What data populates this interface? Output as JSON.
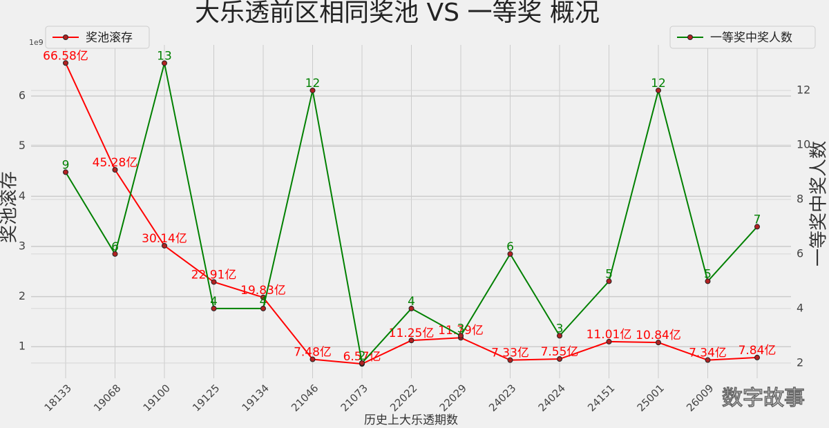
{
  "chart_data": {
    "type": "line",
    "title": "大乐透前区相同奖池 VS 一等奖 概况",
    "x_label": "历史上大乐透期数",
    "y_label": "奖池滚存",
    "y2_label": "一等奖中奖人数",
    "y_offset_label": "1e9",
    "watermark": "数字故事",
    "categories": [
      "18133",
      "19068",
      "19100",
      "19125",
      "19134",
      "21046",
      "21073",
      "22022",
      "22029",
      "24023",
      "24024",
      "24151",
      "25001",
      "26009",
      null
    ],
    "ylim": [
      0.37,
      7.02
    ],
    "yticks": [
      1,
      2,
      3,
      4,
      5,
      6
    ],
    "y2lim": [
      1.44,
      13.67
    ],
    "y2ticks": [
      2,
      4,
      6,
      8,
      10,
      12
    ],
    "grid": true,
    "series": [
      {
        "name": "奖池滚存",
        "color": "#ff0000",
        "marker_color": "#b22222",
        "legend": "upper left",
        "values": [
          6.658,
          4.528,
          3.014,
          2.291,
          1.983,
          0.748,
          0.657,
          1.125,
          1.179,
          0.733,
          0.755,
          1.101,
          1.084,
          0.734,
          0.784
        ],
        "value_labels": [
          "66.58亿",
          "45.28亿",
          "30.14亿",
          "22.91亿",
          "19.83亿",
          "7.48亿",
          "6.57亿",
          "11.25亿",
          "11.79亿",
          "7.33亿",
          "7.55亿",
          "11.01亿",
          "10.84亿",
          "7.34亿",
          "7.84亿"
        ]
      },
      {
        "name": "一等奖中奖人数",
        "color": "#008000",
        "marker_color": "#b22222",
        "legend": "upper right",
        "axis": "y2",
        "values": [
          9,
          6,
          13,
          4,
          4,
          12,
          2,
          4,
          3,
          6,
          3,
          5,
          12,
          5,
          7
        ]
      }
    ]
  }
}
